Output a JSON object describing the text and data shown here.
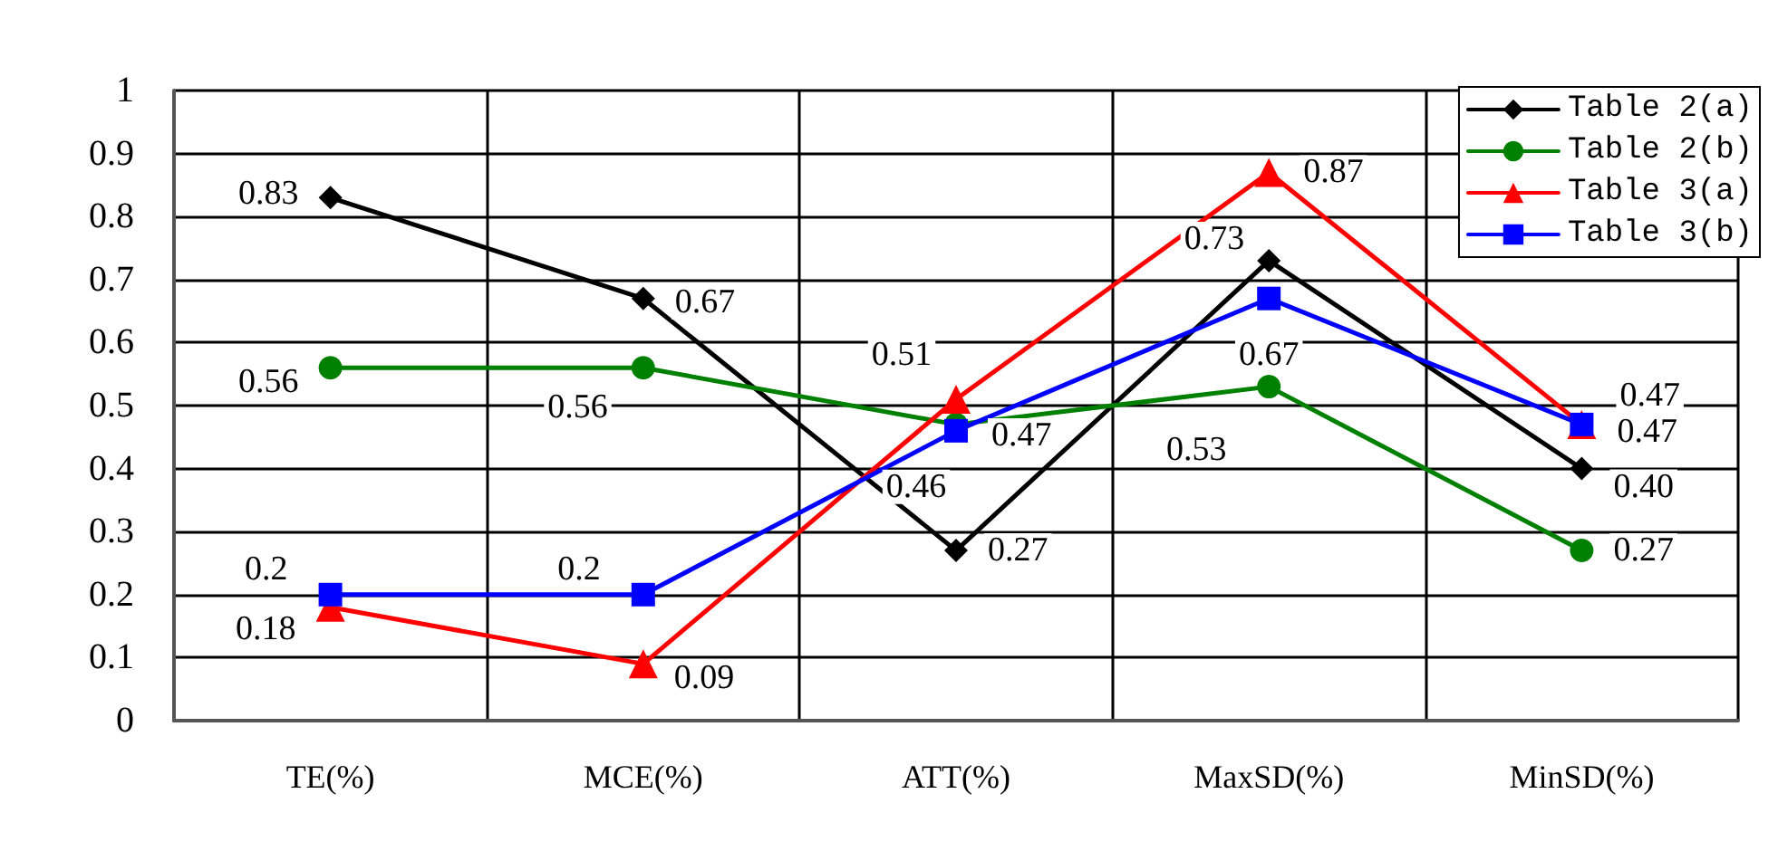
{
  "chart_data": {
    "type": "line",
    "categories": [
      "TE(%)",
      "MCE(%)",
      "ATT(%)",
      "MaxSD(%)",
      "MinSD(%)"
    ],
    "series": [
      {
        "name": "Table 2(a)",
        "color": "#000000",
        "marker": "diamond",
        "values": [
          0.83,
          0.67,
          0.27,
          0.73,
          0.4
        ],
        "value_labels": [
          "0.83",
          "0.67",
          "0.27",
          "0.73",
          "0.40"
        ]
      },
      {
        "name": "Table 2(b)",
        "color": "#008000",
        "marker": "circle",
        "values": [
          0.56,
          0.56,
          0.47,
          0.53,
          0.27
        ],
        "value_labels": [
          "0.56",
          "0.56",
          "0.47",
          "0.53",
          "0.27"
        ]
      },
      {
        "name": "Table 3(a)",
        "color": "#ff0000",
        "marker": "triangle",
        "values": [
          0.18,
          0.09,
          0.51,
          0.87,
          0.47
        ],
        "value_labels": [
          "0.18",
          "0.09",
          "0.51",
          "0.87",
          "0.47"
        ]
      },
      {
        "name": "Table 3(b)",
        "color": "#0000ff",
        "marker": "square",
        "values": [
          0.2,
          0.2,
          0.46,
          0.67,
          0.47
        ],
        "value_labels": [
          "0.2",
          "0.2",
          "0.46",
          "0.67",
          "0.47"
        ]
      }
    ],
    "ylim": [
      0,
      1
    ],
    "yticks": [
      0,
      0.1,
      0.2,
      0.3,
      0.4,
      0.5,
      0.6,
      0.7,
      0.8,
      0.9,
      1
    ],
    "grid": true,
    "legend": "top right",
    "line_style": "solid"
  }
}
